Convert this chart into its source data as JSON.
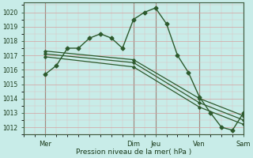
{
  "background_color": "#c8ece8",
  "grid_color_major": "#d4a0a0",
  "grid_color_minor": "#e0c0c0",
  "line_color": "#2d5a2d",
  "ylabel_vals": [
    1012,
    1013,
    1014,
    1015,
    1016,
    1017,
    1018,
    1019,
    1020
  ],
  "ylim": [
    1011.5,
    1020.7
  ],
  "xlabel": "Pression niveau de la mer( hPa )",
  "xlim": [
    -12,
    108
  ],
  "x_ticks": [
    0,
    48,
    60,
    84,
    108
  ],
  "x_tick_labels": [
    "Mer",
    "Dim",
    "Jeu",
    "Ven",
    "Sam"
  ],
  "vlines": [
    0,
    48,
    60,
    84,
    108
  ],
  "series1_x": [
    0,
    6,
    12,
    18,
    24,
    30,
    36,
    42,
    48,
    54,
    60,
    66,
    72,
    78,
    84,
    90,
    96,
    102,
    108
  ],
  "series1_y": [
    1015.7,
    1016.3,
    1017.5,
    1017.5,
    1018.2,
    1018.5,
    1018.2,
    1017.5,
    1019.5,
    1020.0,
    1020.3,
    1019.2,
    1017.0,
    1015.8,
    1014.1,
    1013.0,
    1012.0,
    1011.8,
    1013.0
  ],
  "series2_x": [
    0,
    48,
    84,
    108
  ],
  "series2_y": [
    1017.3,
    1016.7,
    1014.0,
    1012.8
  ],
  "series3_x": [
    0,
    48,
    84,
    108
  ],
  "series3_y": [
    1017.1,
    1016.5,
    1013.7,
    1012.5
  ],
  "series4_x": [
    0,
    48,
    84,
    108
  ],
  "series4_y": [
    1016.9,
    1016.2,
    1013.4,
    1012.2
  ]
}
